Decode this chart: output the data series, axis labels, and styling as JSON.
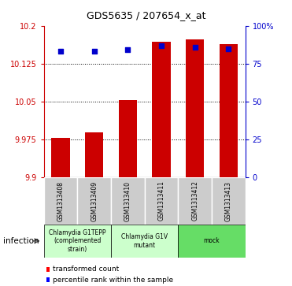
{
  "title": "GDS5635 / 207654_x_at",
  "samples": [
    "GSM1313408",
    "GSM1313409",
    "GSM1313410",
    "GSM1313411",
    "GSM1313412",
    "GSM1313413"
  ],
  "bar_values": [
    9.978,
    9.989,
    10.053,
    10.168,
    10.173,
    10.163
  ],
  "percentile_values": [
    83,
    83,
    84,
    87,
    86,
    85
  ],
  "ylim_left": [
    9.9,
    10.2
  ],
  "ylim_right": [
    0,
    100
  ],
  "yticks_left": [
    9.9,
    9.975,
    10.05,
    10.125,
    10.2
  ],
  "yticks_right": [
    0,
    25,
    50,
    75,
    100
  ],
  "ytick_labels_left": [
    "9.9",
    "9.975",
    "10.05",
    "10.125",
    "10.2"
  ],
  "ytick_labels_right": [
    "0",
    "25",
    "50",
    "75",
    "100%"
  ],
  "bar_color": "#cc0000",
  "dot_color": "#0000cc",
  "bar_bottom": 9.9,
  "group_defs": [
    {
      "indices": [
        0,
        1
      ],
      "label": "Chlamydia G1TEPP\n(complemented\nstrain)",
      "color": "#ccffcc"
    },
    {
      "indices": [
        2,
        3
      ],
      "label": "Chlamydia G1V\nmutant",
      "color": "#ccffcc"
    },
    {
      "indices": [
        4,
        5
      ],
      "label": "mock",
      "color": "#66dd66"
    }
  ],
  "factor_label": "infection",
  "legend_bar_label": "transformed count",
  "legend_dot_label": "percentile rank within the sample",
  "left_tick_color": "#cc0000",
  "right_tick_color": "#0000cc",
  "sample_box_color": "#cccccc",
  "bar_width": 0.55
}
